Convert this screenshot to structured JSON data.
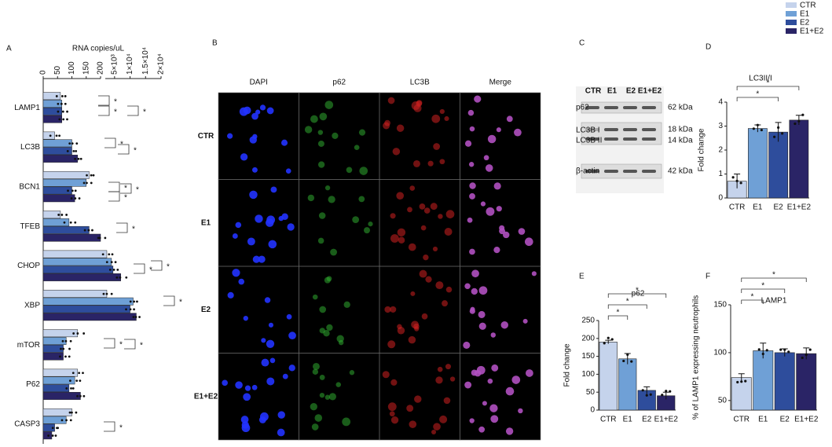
{
  "chart_data": [
    {
      "type": "hbar",
      "title": "RNA copies/uL",
      "categories": [
        "LAMP1",
        "LC3B",
        "BCN1",
        "TFEB",
        "CHOP",
        "XBP",
        "mTOR",
        "P62",
        "CASP3"
      ],
      "series": [
        {
          "name": "CTR",
          "color": "#c5d3ec",
          "values": [
            60,
            40,
            160,
            60,
            2500,
            2500,
            120,
            120,
            100
          ]
        },
        {
          "name": "E1",
          "color": "#6fa0d6",
          "values": [
            65,
            100,
            150,
            90,
            4000,
            11000,
            80,
            110,
            80
          ]
        },
        {
          "name": "E2",
          "color": "#2e4d9c",
          "values": [
            65,
            100,
            100,
            160,
            4500,
            10000,
            70,
            90,
            40
          ]
        },
        {
          "name": "E1+E2",
          "color": "#2a2466",
          "values": [
            65,
            120,
            110,
            200,
            7000,
            12000,
            70,
            130,
            30
          ]
        }
      ],
      "xlim": [
        0,
        200
      ],
      "xticks": [
        0,
        50,
        100,
        150,
        200
      ],
      "x2lim": [
        2000,
        20000
      ],
      "x2ticks": [
        {
          "value": 5000,
          "label": "5×10³"
        },
        {
          "value": 10000,
          "label": "1×10⁴"
        },
        {
          "value": 15000,
          "label": "1.5×10⁴"
        },
        {
          "value": 20000,
          "label": "2×10⁴"
        }
      ],
      "annotations": [
        "*",
        "*",
        "*",
        "*",
        "*",
        "*",
        "*",
        "*",
        "*",
        "*",
        "*",
        "*",
        "*",
        "*",
        "*"
      ]
    },
    {
      "type": "bar",
      "title": "LC3II/I",
      "ylabel": "Fold change",
      "categories": [
        "CTR",
        "E1",
        "E2",
        "E1+E2"
      ],
      "values": [
        0.7,
        2.9,
        2.75,
        3.25
      ],
      "errors": [
        0.3,
        0.15,
        0.4,
        0.2
      ],
      "colors": [
        "#c5d3ec",
        "#6fa0d6",
        "#2e4d9c",
        "#2a2466"
      ],
      "ylim": [
        0,
        4
      ],
      "yticks": [
        0,
        1,
        2,
        3,
        4
      ],
      "annotations": [
        "*",
        "*"
      ]
    },
    {
      "type": "bar",
      "title": "p62",
      "ylabel": "Fold change",
      "categories": [
        "CTR",
        "E1",
        "E2",
        "E1+E2"
      ],
      "values": [
        190,
        143,
        55,
        40
      ],
      "errors": [
        5,
        15,
        10,
        10
      ],
      "colors": [
        "#c5d3ec",
        "#6fa0d6",
        "#2e4d9c",
        "#2a2466"
      ],
      "ylim": [
        0,
        250
      ],
      "yticks": [
        0,
        50,
        100,
        150,
        200,
        250
      ],
      "annotations": [
        "*",
        "*",
        "*"
      ]
    },
    {
      "type": "bar",
      "title": "LAMP1",
      "ylabel": "% of LAMP1 expressing neutrophils",
      "categories": [
        "CTR",
        "E1",
        "E2",
        "E1+E2"
      ],
      "values": [
        74,
        102,
        100,
        99
      ],
      "errors": [
        4,
        8,
        4,
        6
      ],
      "colors": [
        "#c5d3ec",
        "#6fa0d6",
        "#2e4d9c",
        "#2a2466"
      ],
      "ylim": [
        40,
        150
      ],
      "yticks": [
        50,
        100,
        150
      ],
      "annotations": [
        "*",
        "*",
        "*"
      ]
    }
  ],
  "panel_letters": [
    "A",
    "B",
    "C",
    "D",
    "E",
    "F"
  ],
  "microscopy": {
    "columns": [
      "DAPI",
      "p62",
      "LC3B",
      "Merge"
    ],
    "rows": [
      "CTR",
      "E1",
      "E2",
      "E1+E2"
    ]
  },
  "western_blot": {
    "lanes": [
      "CTR",
      "E1",
      "E2",
      "E1+E2"
    ],
    "proteins": [
      "p62",
      "LC3B I",
      "LC3B II",
      "β-actin"
    ],
    "sizes": [
      "62 kDa",
      "18 kDa",
      "14 kDa",
      "42 kDa"
    ]
  }
}
